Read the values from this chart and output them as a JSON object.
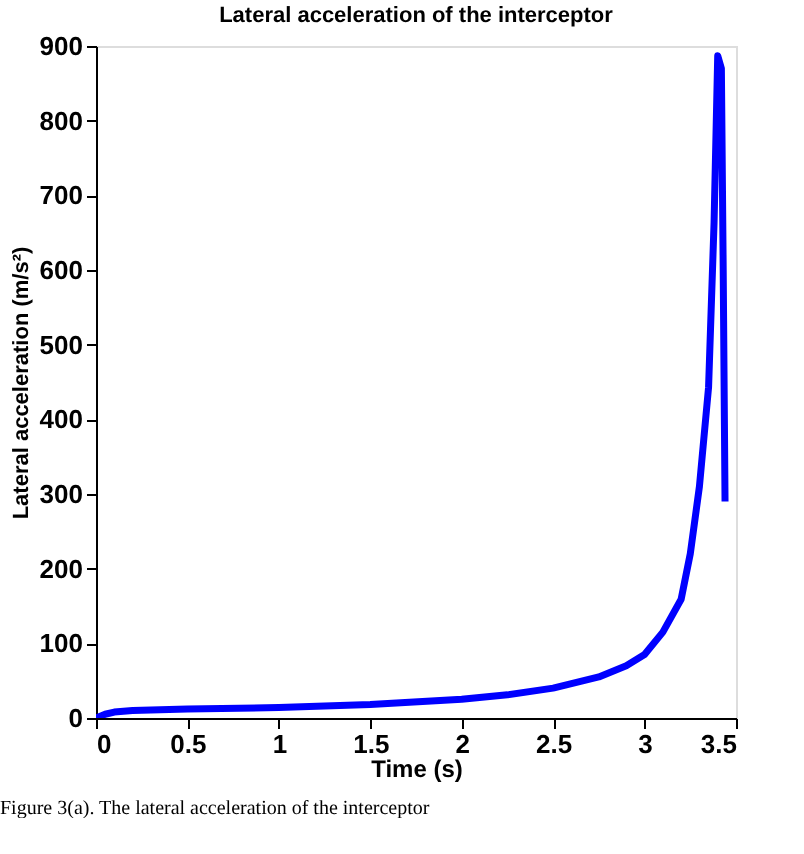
{
  "chart_data": {
    "type": "line",
    "title": "Lateral acceleration of the interceptor",
    "xlabel": "Time (s)",
    "ylabel": "Lateral acceleration (m/s²)",
    "series": [
      {
        "color": "#0000ff",
        "x": [
          0,
          0.05,
          0.1,
          0.2,
          0.5,
          1.0,
          1.5,
          2.0,
          2.25,
          2.5,
          2.75,
          2.9,
          3.0,
          3.1,
          3.2,
          3.25,
          3.3,
          3.35,
          3.38,
          3.4,
          3.42,
          3.43,
          3.44
        ],
        "values": [
          0,
          5,
          8,
          10,
          12,
          14,
          18,
          25,
          31,
          40,
          55,
          70,
          85,
          115,
          159,
          220,
          310,
          443,
          663,
          887,
          870,
          600,
          290
        ]
      }
    ],
    "xlim": [
      0,
      3.5
    ],
    "ylim": [
      0,
      900
    ],
    "xticks": [
      0,
      0.5,
      1,
      1.5,
      2,
      2.5,
      3,
      3.5
    ],
    "yticks": [
      0,
      100,
      200,
      300,
      400,
      500,
      600,
      700,
      800,
      900
    ],
    "grid": false,
    "legend": false,
    "annotations": [
      "Figure 3(a). The lateral acceleration of the interceptor"
    ]
  }
}
